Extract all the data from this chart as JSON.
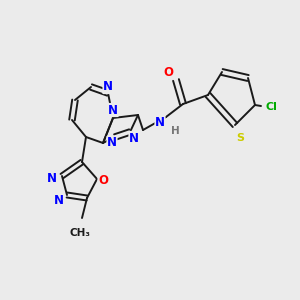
{
  "background_color": "#ebebeb",
  "bond_color": "#1a1a1a",
  "atom_colors": {
    "N": "#0000ff",
    "O": "#ff0000",
    "S": "#cccc00",
    "Cl": "#00aa00",
    "C": "#1a1a1a",
    "H": "#777777"
  },
  "figsize": [
    3.0,
    3.0
  ],
  "dpi": 100
}
